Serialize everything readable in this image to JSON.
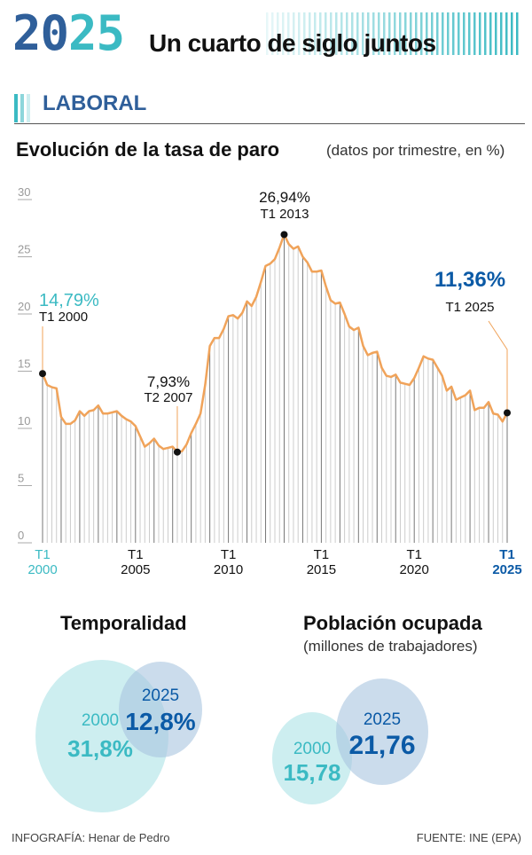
{
  "header": {
    "logo_left": "20",
    "logo_right": "25",
    "title": "Un cuarto de siglo juntos"
  },
  "section": {
    "title": "LABORAL"
  },
  "colors": {
    "teal": "#3bbac3",
    "blue": "#0b5aa6",
    "navy": "#2f5f9a",
    "line": "#f0a35a",
    "bubble_teal": "#cdeef0",
    "bubble_blue": "#c9d9ea"
  },
  "chart_data": {
    "type": "line",
    "title": "Evolución de la tasa de paro",
    "subtitle": "(datos por trimestre, en %)",
    "x_start": "T1 2000",
    "x_end": "T1 2025",
    "frequency": "quarterly",
    "ylim": [
      0,
      30
    ],
    "yticks": [
      "0",
      "5",
      "10",
      "15",
      "20",
      "25",
      "30"
    ],
    "xticks": [
      {
        "q": 0,
        "t": "T1",
        "y": "2000",
        "style": "teal"
      },
      {
        "q": 20,
        "t": "T1",
        "y": "2005",
        "style": "normal"
      },
      {
        "q": 40,
        "t": "T1",
        "y": "2010",
        "style": "normal"
      },
      {
        "q": 60,
        "t": "T1",
        "y": "2015",
        "style": "normal"
      },
      {
        "q": 80,
        "t": "T1",
        "y": "2020",
        "style": "normal"
      },
      {
        "q": 100,
        "t": "T1",
        "y": "2025",
        "style": "blue"
      }
    ],
    "values": [
      14.79,
      13.8,
      13.6,
      13.5,
      11.0,
      10.4,
      10.4,
      10.7,
      11.5,
      11.1,
      11.5,
      11.6,
      12.0,
      11.3,
      11.3,
      11.4,
      11.5,
      11.1,
      10.8,
      10.6,
      10.2,
      9.3,
      8.4,
      8.7,
      9.1,
      8.5,
      8.2,
      8.3,
      8.4,
      7.93,
      8.0,
      8.6,
      9.6,
      10.4,
      11.3,
      13.8,
      17.2,
      17.9,
      17.9,
      18.7,
      19.8,
      19.9,
      19.6,
      20.1,
      21.1,
      20.7,
      21.5,
      22.8,
      24.2,
      24.4,
      24.8,
      25.8,
      26.94,
      26.1,
      25.7,
      25.9,
      25.0,
      24.5,
      23.7,
      23.7,
      23.8,
      22.4,
      21.2,
      20.9,
      21.0,
      20.0,
      18.9,
      18.6,
      18.8,
      17.2,
      16.4,
      16.6,
      16.7,
      15.3,
      14.6,
      14.5,
      14.7,
      14.0,
      13.9,
      13.8,
      14.4,
      15.3,
      16.3,
      16.1,
      16.0,
      15.3,
      14.6,
      13.3,
      13.65,
      12.5,
      12.7,
      12.9,
      13.3,
      11.6,
      11.8,
      11.8,
      12.3,
      11.3,
      11.2,
      10.6,
      11.36
    ],
    "annotations": [
      {
        "q": 0,
        "value": "14,79%",
        "label": "T1 2000",
        "style": "teal"
      },
      {
        "q": 29,
        "value": "7,93%",
        "label": "T2 2007",
        "style": "normal"
      },
      {
        "q": 52,
        "value": "26,94%",
        "label": "T1 2013",
        "style": "normal"
      },
      {
        "q": 100,
        "value": "11,36%",
        "label": "T1 2025",
        "style": "blue"
      }
    ]
  },
  "temporalidad": {
    "title": "Temporalidad",
    "y2000": "2000",
    "v2000": "31,8%",
    "y2025": "2025",
    "v2025": "12,8%"
  },
  "poblacion": {
    "title": "Población ocupada",
    "subtitle": "(millones de trabajadores)",
    "y2000": "2000",
    "v2000": "15,78",
    "y2025": "2025",
    "v2025": "21,76"
  },
  "footer": {
    "credit": "INFOGRAFÍA: Henar de Pedro",
    "source": "FUENTE: INE (EPA)"
  }
}
